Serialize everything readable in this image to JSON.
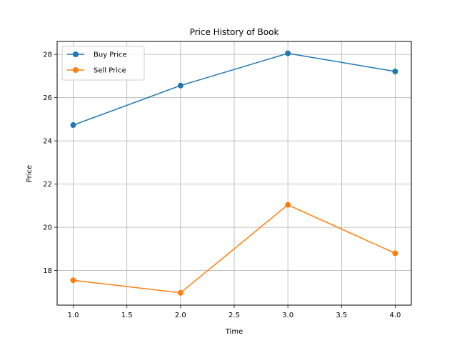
{
  "chart_data": {
    "type": "line",
    "title": "Price History of Book",
    "xlabel": "Time",
    "ylabel": "Price",
    "xlim": [
      0.85,
      4.15
    ],
    "ylim": [
      16.4,
      28.6
    ],
    "xticks": [
      1.0,
      1.5,
      2.0,
      2.5,
      3.0,
      3.5,
      4.0
    ],
    "yticks": [
      18,
      20,
      22,
      24,
      26,
      28
    ],
    "grid": true,
    "legend_position": "upper-left",
    "x": [
      1.0,
      2.0,
      3.0,
      4.0
    ],
    "series": [
      {
        "name": "Buy Price",
        "color": "#1f77b4",
        "marker": "circle",
        "values": [
          24.73,
          26.56,
          28.05,
          27.21
        ]
      },
      {
        "name": "Sell Price",
        "color": "#ff7f0e",
        "marker": "circle",
        "values": [
          17.55,
          16.97,
          21.04,
          18.8
        ]
      }
    ]
  }
}
